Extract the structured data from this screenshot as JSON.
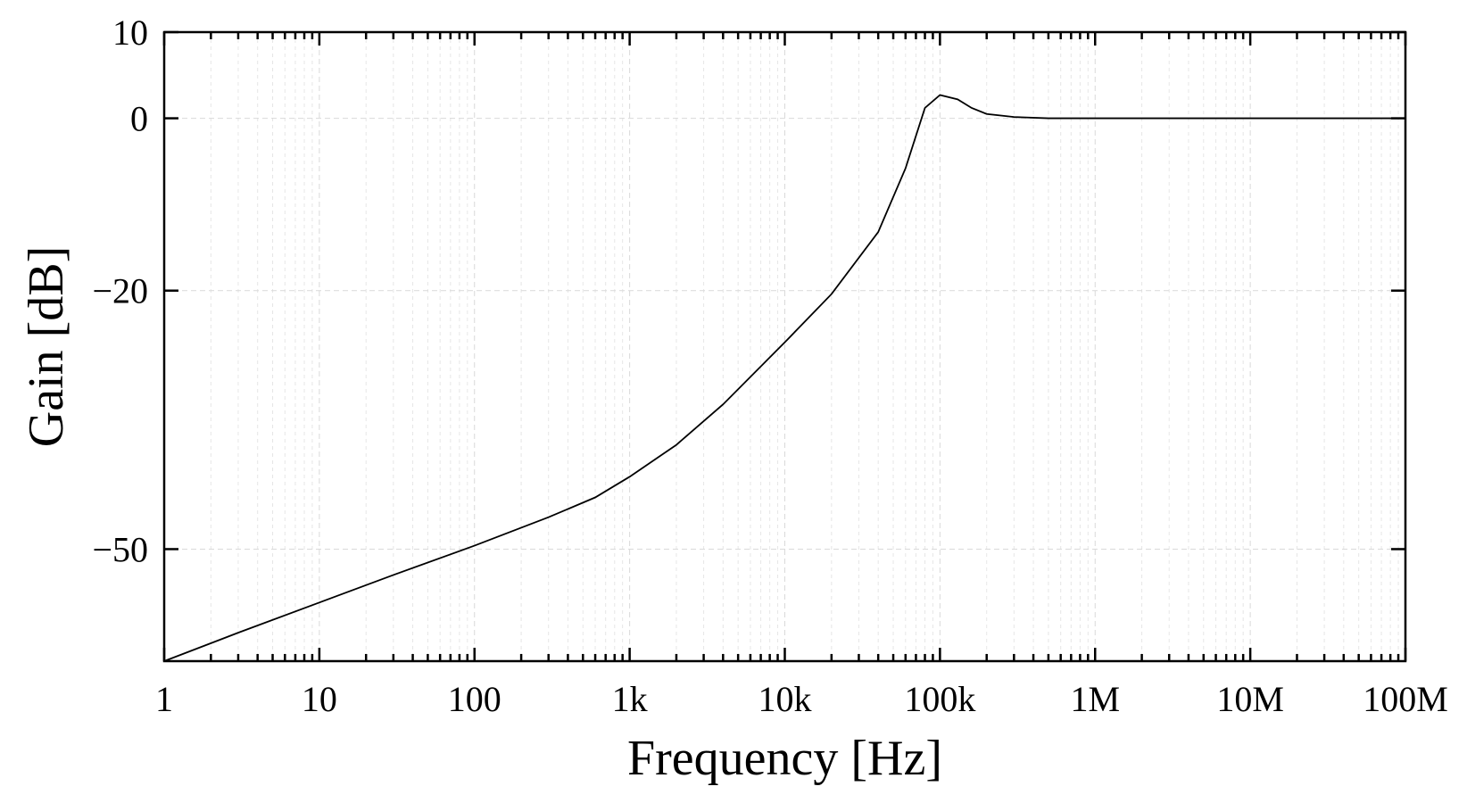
{
  "chart_data": {
    "type": "line",
    "title": "",
    "xlabel": "Frequency [Hz]",
    "ylabel": "Gain [dB]",
    "xscale": "log",
    "xlim": [
      1,
      100000000
    ],
    "ylim": [
      -63,
      10
    ],
    "xticks": [
      1,
      10,
      100,
      1000,
      10000,
      100000,
      1000000,
      10000000,
      100000000
    ],
    "xtick_labels": [
      "1",
      "10",
      "100",
      "1k",
      "10k",
      "100k",
      "1M",
      "10M",
      "100M"
    ],
    "yticks": [
      10,
      0,
      -20,
      -50
    ],
    "ytick_labels": [
      "10",
      "0",
      "−20",
      "−50"
    ],
    "grid": true,
    "series": [
      {
        "name": "Gain",
        "color": "#000000",
        "x": [
          1,
          3,
          10,
          30,
          100,
          300,
          600,
          1000,
          2000,
          4000,
          10000,
          20000,
          40000,
          60000,
          80000,
          100000,
          130000,
          160000,
          200000,
          300000,
          500000,
          1000000,
          10000000,
          100000000
        ],
        "y": [
          -63.0,
          -59.7,
          -56.2,
          -53.0,
          -49.6,
          -46.3,
          -44.0,
          -41.6,
          -37.9,
          -33.2,
          -26.0,
          -20.4,
          -13.2,
          -5.8,
          1.2,
          2.7,
          2.2,
          1.2,
          0.5,
          0.15,
          0.0,
          0.0,
          0.0,
          0.0
        ]
      }
    ]
  }
}
